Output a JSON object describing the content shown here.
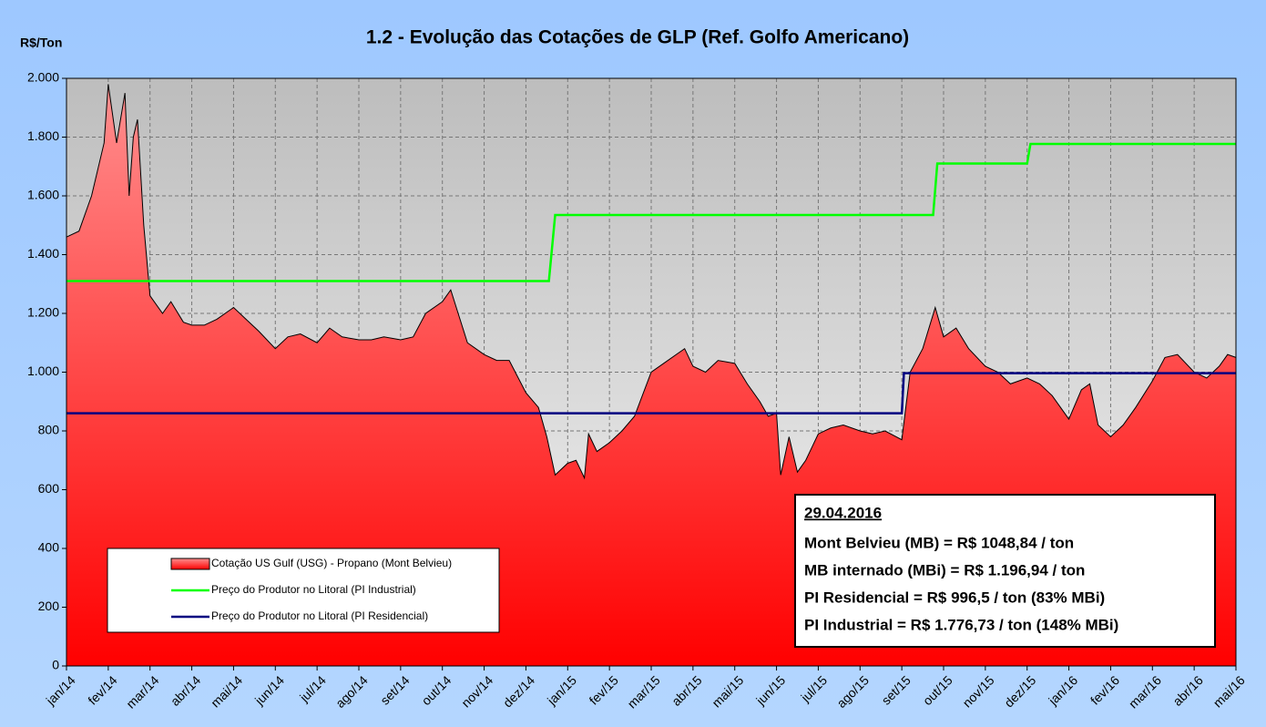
{
  "chart_data": {
    "type": "area",
    "title": "1.2 - Evolução das Cotações de GLP (Ref. Golfo Americano)",
    "y_label": "R$/Ton",
    "xlim": [
      0,
      28
    ],
    "xticks": [
      {
        "value": 0,
        "label": "jan/14"
      },
      {
        "value": 1,
        "label": "fev/14"
      },
      {
        "value": 2,
        "label": "mar/14"
      },
      {
        "value": 3,
        "label": "abr/14"
      },
      {
        "value": 4,
        "label": "mai/14"
      },
      {
        "value": 5,
        "label": "jun/14"
      },
      {
        "value": 6,
        "label": "jul/14"
      },
      {
        "value": 7,
        "label": "ago/14"
      },
      {
        "value": 8,
        "label": "set/14"
      },
      {
        "value": 9,
        "label": "out/14"
      },
      {
        "value": 10,
        "label": "nov/14"
      },
      {
        "value": 11,
        "label": "dez/14"
      },
      {
        "value": 12,
        "label": "jan/15"
      },
      {
        "value": 13,
        "label": "fev/15"
      },
      {
        "value": 14,
        "label": "mar/15"
      },
      {
        "value": 15,
        "label": "abr/15"
      },
      {
        "value": 16,
        "label": "mai/15"
      },
      {
        "value": 17,
        "label": "jun/15"
      },
      {
        "value": 18,
        "label": "jul/15"
      },
      {
        "value": 19,
        "label": "ago/15"
      },
      {
        "value": 20,
        "label": "set/15"
      },
      {
        "value": 21,
        "label": "out/15"
      },
      {
        "value": 22,
        "label": "nov/15"
      },
      {
        "value": 23,
        "label": "dez/15"
      },
      {
        "value": 24,
        "label": "jan/16"
      },
      {
        "value": 25,
        "label": "fev/16"
      },
      {
        "value": 26,
        "label": "mar/16"
      },
      {
        "value": 27,
        "label": "abr/16"
      },
      {
        "value": 28,
        "label": "mai/16"
      }
    ],
    "ylim": [
      0,
      2000
    ],
    "yticks": [
      0,
      200,
      400,
      600,
      800,
      {
        "value": 1000,
        "label": "1.000"
      },
      {
        "value": 1200,
        "label": "1.200"
      },
      {
        "value": 1400,
        "label": "1.400"
      },
      {
        "value": 1600,
        "label": "1.600"
      },
      {
        "value": 1800,
        "label": "1.800"
      },
      {
        "value": 2000,
        "label": "2.000"
      }
    ],
    "grid": true,
    "series": [
      {
        "name": "Cotação US Gulf (USG) - Propano (Mont Belvieu)",
        "type": "area",
        "color": "#ff0000",
        "x": [
          0,
          0.3,
          0.6,
          0.9,
          1.0,
          1.2,
          1.4,
          1.5,
          1.6,
          1.7,
          1.85,
          2.0,
          2.3,
          2.5,
          2.8,
          3.0,
          3.3,
          3.6,
          4.0,
          4.3,
          4.6,
          5.0,
          5.3,
          5.6,
          6.0,
          6.3,
          6.6,
          7.0,
          7.3,
          7.6,
          8.0,
          8.3,
          8.6,
          9.0,
          9.2,
          9.4,
          9.6,
          10.0,
          10.3,
          10.6,
          11.0,
          11.3,
          11.5,
          11.7,
          12.0,
          12.2,
          12.4,
          12.5,
          12.7,
          13.0,
          13.3,
          13.6,
          14.0,
          14.3,
          14.6,
          14.8,
          15.0,
          15.3,
          15.6,
          16.0,
          16.3,
          16.6,
          16.8,
          17.0,
          17.1,
          17.3,
          17.5,
          17.7,
          18.0,
          18.3,
          18.6,
          19.0,
          19.3,
          19.6,
          20.0,
          20.2,
          20.5,
          20.8,
          21.0,
          21.3,
          21.6,
          22.0,
          22.3,
          22.6,
          23.0,
          23.3,
          23.6,
          24.0,
          24.3,
          24.5,
          24.7,
          25.0,
          25.3,
          25.6,
          26.0,
          26.3,
          26.6,
          27.0,
          27.3,
          27.6,
          27.8,
          28.0
        ],
        "values": [
          1460,
          1480,
          1600,
          1780,
          1980,
          1780,
          1950,
          1600,
          1800,
          1860,
          1500,
          1260,
          1200,
          1240,
          1170,
          1160,
          1160,
          1180,
          1220,
          1180,
          1140,
          1080,
          1120,
          1130,
          1100,
          1150,
          1120,
          1110,
          1110,
          1120,
          1110,
          1120,
          1200,
          1240,
          1280,
          1190,
          1100,
          1060,
          1040,
          1040,
          930,
          880,
          780,
          650,
          690,
          700,
          640,
          790,
          730,
          760,
          800,
          850,
          1000,
          1030,
          1060,
          1080,
          1020,
          1000,
          1040,
          1030,
          960,
          900,
          850,
          860,
          650,
          780,
          660,
          700,
          790,
          810,
          820,
          800,
          790,
          800,
          770,
          1000,
          1080,
          1220,
          1120,
          1150,
          1080,
          1020,
          1000,
          960,
          980,
          960,
          920,
          840,
          940,
          960,
          820,
          780,
          820,
          880,
          970,
          1050,
          1060,
          1000,
          980,
          1020,
          1060,
          1050
        ]
      },
      {
        "name": "Preço do Produtor no Litoral (PI Industrial)",
        "type": "line",
        "color": "#00ff00",
        "x": [
          0,
          11.55,
          11.7,
          20.75,
          20.85,
          23.0,
          23.08,
          28
        ],
        "values": [
          1310,
          1310,
          1535,
          1535,
          1710,
          1710,
          1776.73,
          1776.73
        ]
      },
      {
        "name": "Preço do Produtor no Litoral (PI Residencial)",
        "type": "line",
        "color": "#000080",
        "x": [
          0,
          20.0,
          20.05,
          28
        ],
        "values": [
          860,
          860,
          996.5,
          996.5
        ]
      }
    ],
    "annotation": {
      "title": "29.04.2016",
      "lines": [
        "Mont Belvieu (MB) = R$ 1048,84 / ton",
        "MB internado (MBi) = R$ 1.196,94 / ton",
        "PI Residencial = R$ 996,5 / ton (83% MBi)",
        "PI Industrial = R$ 1.776,73 / ton (148% MBi)"
      ]
    }
  }
}
